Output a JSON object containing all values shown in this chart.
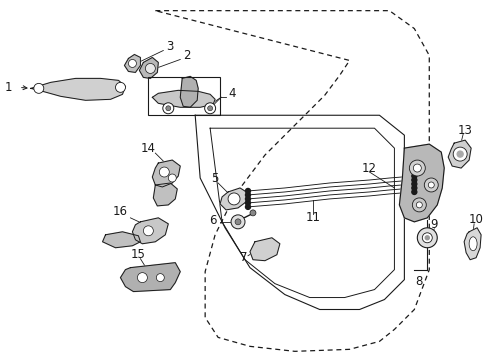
{
  "bg_color": "#ffffff",
  "lc": "#1a1a1a",
  "label_fontsize": 8.5,
  "figsize": [
    4.89,
    3.6
  ],
  "dpi": 100
}
